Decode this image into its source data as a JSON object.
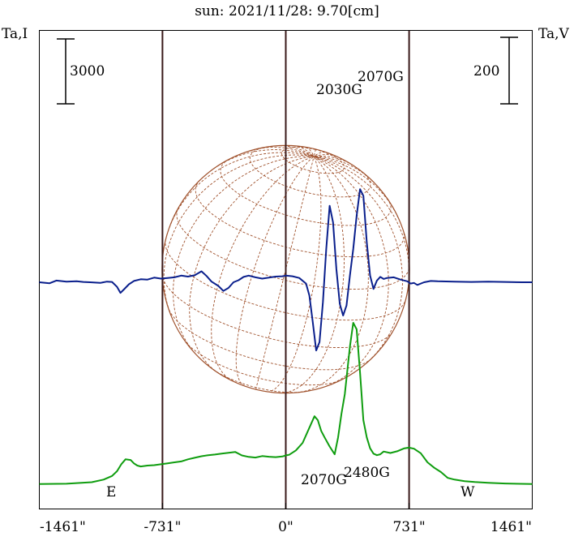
{
  "title": "sun: 2021/11/28: 9.70[cm]",
  "left_axis_label": "Ta,I",
  "right_axis_label": "Ta,V",
  "left_scale_bar_label": "3000",
  "right_scale_bar_label": "200",
  "east_label": "E",
  "west_label": "W",
  "colors": {
    "title": "#1f2a6e",
    "text": "#000000",
    "axis": "#000000",
    "limb_lines": "#3a1a1a",
    "disk": "#a0522d",
    "stokes_I": "#0f9d0f",
    "stokes_V": "#0a1f8c"
  },
  "annotations": [
    "2030G",
    "2070G",
    "2070G",
    "2480G"
  ],
  "chart_data": {
    "type": "line",
    "xlabel": "",
    "x_ticks": [
      "-1461\"",
      "-731\"",
      "0\"",
      "731\"",
      "1461\""
    ],
    "x_tick_values": [
      -1461,
      -731,
      0,
      731,
      1461
    ],
    "xlim": [
      -1461,
      1461
    ],
    "vertical_markers": [
      -731,
      0,
      731
    ],
    "series": [
      {
        "name": "Ta,I",
        "color": "#0f9d0f",
        "x": [
          -1461,
          -1300,
          -1150,
          -1080,
          -1030,
          -1000,
          -975,
          -950,
          -920,
          -900,
          -880,
          -860,
          -820,
          -780,
          -740,
          -700,
          -660,
          -620,
          -580,
          -540,
          -500,
          -460,
          -420,
          -380,
          -340,
          -300,
          -260,
          -220,
          -180,
          -140,
          -100,
          -60,
          -20,
          0,
          20,
          60,
          100,
          140,
          170,
          190,
          210,
          230,
          260,
          290,
          310,
          330,
          350,
          380,
          400,
          420,
          440,
          460,
          480,
          500,
          520,
          540,
          560,
          580,
          620,
          660,
          700,
          730,
          760,
          800,
          840,
          880,
          920,
          960,
          1000,
          1060,
          1120,
          1200,
          1300,
          1461
        ],
        "y": [
          50,
          60,
          130,
          250,
          420,
          640,
          960,
          1190,
          1160,
          1000,
          900,
          860,
          900,
          920,
          960,
          1000,
          1050,
          1090,
          1190,
          1260,
          1330,
          1380,
          1410,
          1450,
          1490,
          1530,
          1370,
          1300,
          1270,
          1340,
          1310,
          1290,
          1320,
          1370,
          1400,
          1600,
          1950,
          2650,
          3180,
          3000,
          2500,
          2200,
          1780,
          1420,
          2200,
          3300,
          4200,
          6400,
          7500,
          7200,
          5200,
          3000,
          2200,
          1700,
          1450,
          1380,
          1420,
          1550,
          1480,
          1560,
          1690,
          1730,
          1680,
          1470,
          1050,
          800,
          600,
          330,
          250,
          180,
          140,
          100,
          70,
          50
        ]
      },
      {
        "name": "Ta,V",
        "color": "#0a1f8c",
        "x": [
          -1461,
          -1400,
          -1360,
          -1300,
          -1240,
          -1200,
          -1160,
          -1100,
          -1060,
          -1030,
          -1000,
          -980,
          -960,
          -930,
          -900,
          -860,
          -820,
          -780,
          -740,
          -700,
          -660,
          -620,
          -580,
          -540,
          -500,
          -470,
          -440,
          -400,
          -370,
          -340,
          -310,
          -280,
          -250,
          -220,
          -180,
          -140,
          -100,
          -60,
          -20,
          0,
          40,
          80,
          120,
          140,
          160,
          180,
          200,
          220,
          240,
          260,
          280,
          300,
          320,
          340,
          360,
          380,
          400,
          420,
          440,
          460,
          480,
          500,
          520,
          540,
          560,
          580,
          600,
          640,
          680,
          720,
          740,
          760,
          780,
          820,
          860,
          900,
          1000,
          1100,
          1200,
          1300,
          1400,
          1461
        ],
        "y": [
          0,
          -3,
          5,
          2,
          3,
          1,
          0,
          -2,
          2,
          1,
          -14,
          -32,
          -22,
          -6,
          4,
          9,
          8,
          14,
          11,
          13,
          15,
          20,
          17,
          21,
          33,
          19,
          2,
          -11,
          -26,
          -17,
          0,
          6,
          16,
          20,
          15,
          11,
          14,
          17,
          18,
          20,
          18,
          13,
          -4,
          -40,
          -120,
          -205,
          -180,
          -60,
          100,
          230,
          180,
          40,
          -65,
          -100,
          -70,
          20,
          100,
          200,
          280,
          260,
          120,
          20,
          -20,
          5,
          16,
          10,
          13,
          15,
          8,
          3,
          -4,
          -2,
          -8,
          0,
          4,
          3,
          2,
          1,
          2,
          1,
          0,
          0
        ]
      }
    ]
  }
}
